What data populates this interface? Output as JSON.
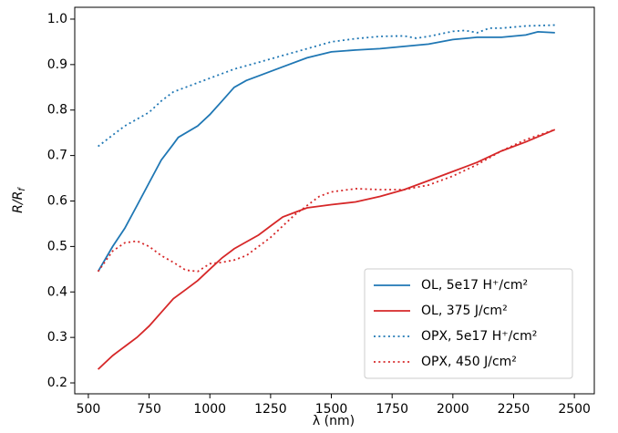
{
  "chart_data": {
    "type": "line",
    "xlabel": "λ (nm)",
    "ylabel": "R/R",
    "ylabel_subscript": "f",
    "xlim": [
      444,
      2582
    ],
    "ylim": [
      0.176,
      1.026
    ],
    "xticks": [
      500,
      750,
      1000,
      1250,
      1500,
      1750,
      2000,
      2250,
      2500
    ],
    "yticks": [
      0.2,
      0.3,
      0.4,
      0.5,
      0.6,
      0.7,
      0.8,
      0.9,
      {
        "value": 1,
        "label": "1.0"
      }
    ],
    "legend": "lower right",
    "series": [
      {
        "name": "OL, 5e17 H⁺/cm²",
        "color": "#1f77b4",
        "style": "solid",
        "x": [
          540,
          600,
          650,
          700,
          750,
          800,
          850,
          870,
          950,
          1000,
          1050,
          1100,
          1150,
          1200,
          1300,
          1400,
          1500,
          1600,
          1700,
          1800,
          1900,
          2000,
          2100,
          2200,
          2300,
          2350,
          2420
        ],
        "values": [
          0.445,
          0.5,
          0.54,
          0.59,
          0.64,
          0.69,
          0.725,
          0.74,
          0.765,
          0.79,
          0.82,
          0.85,
          0.865,
          0.875,
          0.895,
          0.915,
          0.928,
          0.932,
          0.935,
          0.94,
          0.945,
          0.955,
          0.96,
          0.96,
          0.965,
          0.972,
          0.97
        ]
      },
      {
        "name": "OL, 375 J/cm²",
        "color": "#d62728",
        "style": "solid",
        "x": [
          540,
          600,
          650,
          700,
          750,
          800,
          850,
          900,
          950,
          1000,
          1050,
          1100,
          1150,
          1200,
          1250,
          1300,
          1350,
          1400,
          1500,
          1600,
          1700,
          1800,
          1900,
          2000,
          2100,
          2200,
          2300,
          2420
        ],
        "values": [
          0.23,
          0.26,
          0.28,
          0.3,
          0.325,
          0.355,
          0.385,
          0.405,
          0.425,
          0.45,
          0.475,
          0.495,
          0.51,
          0.525,
          0.545,
          0.565,
          0.575,
          0.585,
          0.592,
          0.598,
          0.61,
          0.625,
          0.645,
          0.665,
          0.685,
          0.71,
          0.73,
          0.757
        ]
      },
      {
        "name": "OPX, 5e17 H⁺/cm²",
        "color": "#1f77b4",
        "style": "dotted",
        "x": [
          540,
          600,
          650,
          700,
          750,
          800,
          850,
          900,
          1000,
          1100,
          1200,
          1300,
          1400,
          1500,
          1600,
          1700,
          1800,
          1850,
          1900,
          2000,
          2050,
          2100,
          2150,
          2200,
          2300,
          2420
        ],
        "values": [
          0.72,
          0.745,
          0.765,
          0.78,
          0.795,
          0.82,
          0.84,
          0.85,
          0.87,
          0.89,
          0.905,
          0.92,
          0.935,
          0.95,
          0.957,
          0.962,
          0.963,
          0.958,
          0.962,
          0.973,
          0.975,
          0.97,
          0.98,
          0.98,
          0.985,
          0.987
        ]
      },
      {
        "name": "OPX, 450 J/cm²",
        "color": "#d62728",
        "style": "dotted",
        "x": [
          540,
          600,
          650,
          700,
          750,
          800,
          850,
          900,
          950,
          1000,
          1050,
          1100,
          1150,
          1200,
          1250,
          1300,
          1350,
          1400,
          1450,
          1500,
          1600,
          1700,
          1800,
          1900,
          2000,
          2100,
          2200,
          2300,
          2420
        ],
        "values": [
          0.445,
          0.49,
          0.508,
          0.512,
          0.5,
          0.48,
          0.465,
          0.448,
          0.445,
          0.462,
          0.465,
          0.47,
          0.48,
          0.5,
          0.52,
          0.545,
          0.57,
          0.59,
          0.61,
          0.62,
          0.627,
          0.625,
          0.625,
          0.635,
          0.655,
          0.68,
          0.71,
          0.735,
          0.757
        ]
      }
    ]
  }
}
